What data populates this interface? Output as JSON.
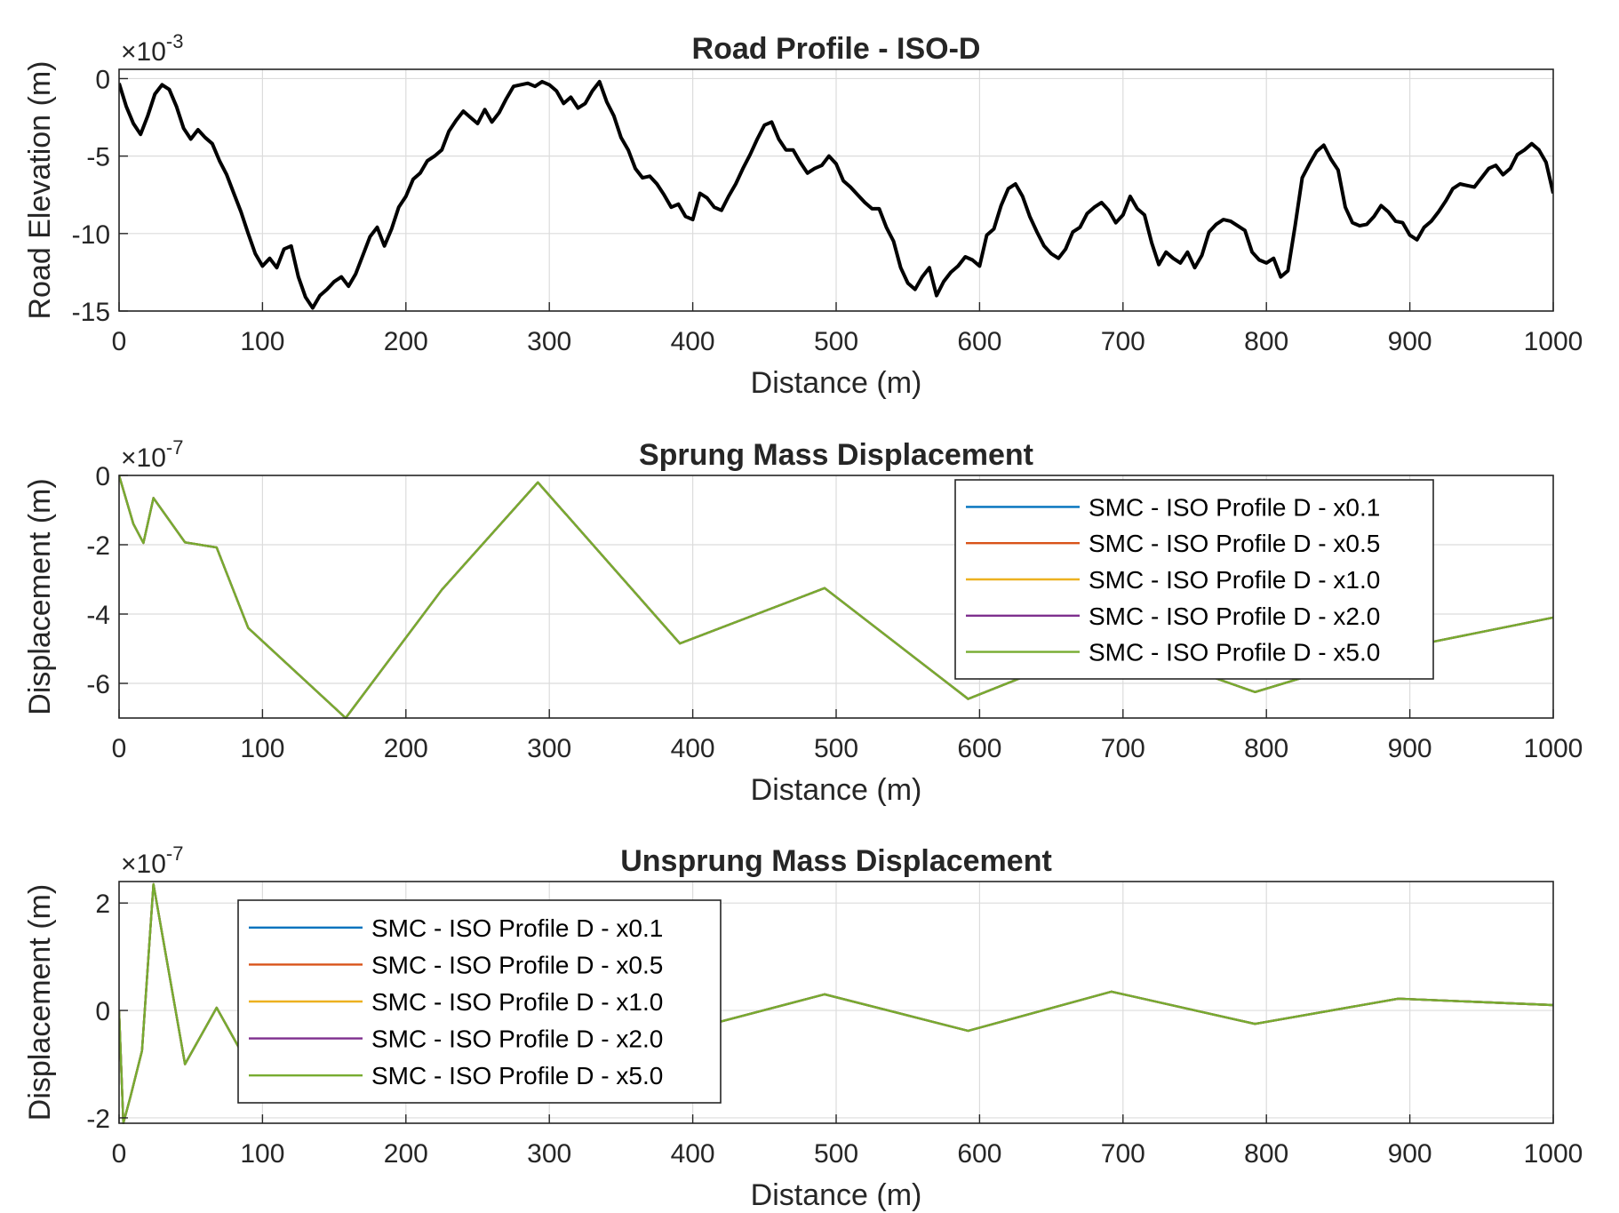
{
  "colors": {
    "series": [
      "#0072BD",
      "#D95319",
      "#EDB120",
      "#7E2F8E",
      "#77AC30"
    ],
    "road": "#000000",
    "grid": "#dcdcdc",
    "axes": "#262626"
  },
  "chart_data": [
    {
      "type": "line",
      "title": "Road Profile - ISO-D",
      "xlabel": "Distance (m)",
      "ylabel": "Road Elevation (m)",
      "y_multiplier": "×10",
      "y_exponent": "-3",
      "xlim": [
        0,
        1000
      ],
      "ylim": [
        -15,
        0.6
      ],
      "xticks": [
        0,
        100,
        200,
        300,
        400,
        500,
        600,
        700,
        800,
        900,
        1000
      ],
      "xtick_labels": [
        "0",
        "100",
        "200",
        "300",
        "400",
        "500",
        "600",
        "700",
        "800",
        "900",
        "1000"
      ],
      "yticks": [
        0,
        -5,
        -10,
        -15
      ],
      "ytick_labels": [
        "0",
        "-5",
        "-10",
        "-15"
      ],
      "grid": true,
      "legend": null,
      "series": [
        {
          "x": [
            0,
            5,
            10,
            15,
            20,
            25,
            30,
            35,
            40,
            45,
            50,
            55,
            60,
            65,
            70,
            75,
            80,
            85,
            90,
            95,
            100,
            105,
            110,
            115,
            120,
            125,
            130,
            135,
            140,
            145,
            150,
            155,
            160,
            165,
            170,
            175,
            180,
            185,
            190,
            195,
            200,
            205,
            210,
            215,
            220,
            225,
            230,
            235,
            240,
            245,
            250,
            255,
            260,
            265,
            270,
            275,
            280,
            285,
            290,
            295,
            300,
            305,
            310,
            315,
            320,
            325,
            330,
            335,
            340,
            345,
            350,
            355,
            360,
            365,
            370,
            375,
            380,
            385,
            390,
            395,
            400,
            405,
            410,
            415,
            420,
            425,
            430,
            435,
            440,
            445,
            450,
            455,
            460,
            465,
            470,
            475,
            480,
            485,
            490,
            495,
            500,
            505,
            510,
            515,
            520,
            525,
            530,
            535,
            540,
            545,
            550,
            555,
            560,
            565,
            570,
            575,
            580,
            585,
            590,
            595,
            600,
            605,
            610,
            615,
            620,
            625,
            630,
            635,
            640,
            645,
            650,
            655,
            660,
            665,
            670,
            675,
            680,
            685,
            690,
            695,
            700,
            705,
            710,
            715,
            720,
            725,
            730,
            735,
            740,
            745,
            750,
            755,
            760,
            765,
            770,
            775,
            780,
            785,
            790,
            795,
            800,
            805,
            810,
            815,
            820,
            825,
            830,
            835,
            840,
            845,
            850,
            855,
            860,
            865,
            870,
            875,
            880,
            885,
            890,
            895,
            900,
            905,
            910,
            915,
            920,
            925,
            930,
            935,
            940,
            945,
            950,
            955,
            960,
            965,
            970,
            975,
            980,
            985,
            990,
            995,
            1000
          ],
          "y": [
            -0.3,
            -1.8,
            -2.9,
            -3.6,
            -2.4,
            -1.0,
            -0.4,
            -0.7,
            -1.8,
            -3.2,
            -3.9,
            -3.3,
            -3.8,
            -4.2,
            -5.3,
            -6.2,
            -7.4,
            -8.6,
            -10.0,
            -11.3,
            -12.1,
            -11.6,
            -12.2,
            -11.0,
            -10.8,
            -12.8,
            -14.1,
            -14.8,
            -14.0,
            -13.6,
            -13.1,
            -12.8,
            -13.4,
            -12.6,
            -11.4,
            -10.2,
            -9.6,
            -10.8,
            -9.7,
            -8.3,
            -7.6,
            -6.5,
            -6.1,
            -5.3,
            -5.0,
            -4.6,
            -3.4,
            -2.7,
            -2.1,
            -2.5,
            -2.9,
            -2.0,
            -2.8,
            -2.2,
            -1.3,
            -0.5,
            -0.4,
            -0.3,
            -0.5,
            -0.2,
            -0.4,
            -0.8,
            -1.6,
            -1.2,
            -1.9,
            -1.6,
            -0.8,
            -0.2,
            -1.5,
            -2.4,
            -3.8,
            -4.6,
            -5.8,
            -6.4,
            -6.3,
            -6.8,
            -7.5,
            -8.3,
            -8.1,
            -8.9,
            -9.1,
            -7.4,
            -7.7,
            -8.3,
            -8.5,
            -7.6,
            -6.8,
            -5.8,
            -4.9,
            -3.9,
            -3.0,
            -2.8,
            -3.9,
            -4.6,
            -4.6,
            -5.4,
            -6.1,
            -5.8,
            -5.6,
            -5.0,
            -5.5,
            -6.6,
            -7.0,
            -7.5,
            -8.0,
            -8.4,
            -8.4,
            -9.6,
            -10.5,
            -12.2,
            -13.2,
            -13.6,
            -12.8,
            -12.2,
            -14.0,
            -13.1,
            -12.5,
            -12.1,
            -11.5,
            -11.7,
            -12.1,
            -10.1,
            -9.7,
            -8.2,
            -7.1,
            -6.8,
            -7.6,
            -8.9,
            -9.9,
            -10.8,
            -11.3,
            -11.6,
            -11.0,
            -9.9,
            -9.6,
            -8.7,
            -8.3,
            -8.0,
            -8.5,
            -9.3,
            -8.8,
            -7.6,
            -8.4,
            -8.8,
            -10.6,
            -12.0,
            -11.2,
            -11.6,
            -11.9,
            -11.2,
            -12.2,
            -11.4,
            -9.9,
            -9.4,
            -9.1,
            -9.2,
            -9.5,
            -9.8,
            -11.2,
            -11.7,
            -11.9,
            -11.6,
            -12.8,
            -12.4,
            -9.5,
            -6.4,
            -5.5,
            -4.7,
            -4.3,
            -5.2,
            -5.9,
            -8.3,
            -9.3,
            -9.5,
            -9.4,
            -8.9,
            -8.2,
            -8.6,
            -9.2,
            -9.3,
            -10.1,
            -10.4,
            -9.6,
            -9.2,
            -8.6,
            -7.9,
            -7.1,
            -6.8,
            -6.9,
            -7.0,
            -6.4,
            -5.8,
            -5.6,
            -6.2,
            -5.8,
            -4.9,
            -4.6,
            -4.2,
            -4.6,
            -5.4,
            -7.4
          ]
        }
      ]
    },
    {
      "type": "line",
      "title": "Sprung Mass Displacement",
      "xlabel": "Distance (m)",
      "ylabel": "Displacement (m)",
      "y_multiplier": "×10",
      "y_exponent": "-7",
      "xlim": [
        0,
        1000
      ],
      "ylim": [
        -7,
        0
      ],
      "xticks": [
        0,
        100,
        200,
        300,
        400,
        500,
        600,
        700,
        800,
        900,
        1000
      ],
      "xtick_labels": [
        "0",
        "100",
        "200",
        "300",
        "400",
        "500",
        "600",
        "700",
        "800",
        "900",
        "1000"
      ],
      "yticks": [
        0,
        -2,
        -4,
        -6
      ],
      "ytick_labels": [
        "0",
        "-2",
        "-4",
        "-6"
      ],
      "grid": true,
      "legend": "top-right",
      "series": [
        {
          "name": "SMC - ISO Profile D - x0.1",
          "x": [
            0,
            10,
            17,
            24,
            46,
            68,
            90,
            158,
            225,
            292,
            391,
            492,
            592,
            692,
            792,
            892,
            1000
          ],
          "y": [
            0,
            -1.4,
            -1.95,
            -0.65,
            -1.93,
            -2.08,
            -4.4,
            -7.0,
            -3.3,
            -0.2,
            -4.85,
            -3.25,
            -6.45,
            -4.8,
            -6.25,
            -5.0,
            -4.1
          ]
        },
        {
          "name": "SMC - ISO Profile D - x0.5",
          "x": [
            0,
            10,
            17,
            24,
            46,
            68,
            90,
            158,
            225,
            292,
            391,
            492,
            592,
            692,
            792,
            892,
            1000
          ],
          "y": [
            0,
            -1.4,
            -1.95,
            -0.65,
            -1.93,
            -2.08,
            -4.4,
            -7.0,
            -3.3,
            -0.2,
            -4.85,
            -3.25,
            -6.45,
            -4.8,
            -6.25,
            -5.0,
            -4.1
          ]
        },
        {
          "name": "SMC - ISO Profile D - x1.0",
          "x": [
            0,
            10,
            17,
            24,
            46,
            68,
            90,
            158,
            225,
            292,
            391,
            492,
            592,
            692,
            792,
            892,
            1000
          ],
          "y": [
            0,
            -1.4,
            -1.95,
            -0.65,
            -1.93,
            -2.08,
            -4.4,
            -7.0,
            -3.3,
            -0.2,
            -4.85,
            -3.25,
            -6.45,
            -4.8,
            -6.25,
            -5.0,
            -4.1
          ]
        },
        {
          "name": "SMC - ISO Profile D - x2.0",
          "x": [
            0,
            10,
            17,
            24,
            46,
            68,
            90,
            158,
            225,
            292,
            391,
            492,
            592,
            692,
            792,
            892,
            1000
          ],
          "y": [
            0,
            -1.4,
            -1.95,
            -0.65,
            -1.93,
            -2.08,
            -4.4,
            -7.0,
            -3.3,
            -0.2,
            -4.85,
            -3.25,
            -6.45,
            -4.8,
            -6.25,
            -5.0,
            -4.1
          ]
        },
        {
          "name": "SMC - ISO Profile D - x5.0",
          "x": [
            0,
            10,
            17,
            24,
            46,
            68,
            90,
            158,
            225,
            292,
            391,
            492,
            592,
            692,
            792,
            892,
            1000
          ],
          "y": [
            0,
            -1.4,
            -1.95,
            -0.65,
            -1.93,
            -2.08,
            -4.4,
            -7.0,
            -3.3,
            -0.2,
            -4.85,
            -3.25,
            -6.45,
            -4.8,
            -6.25,
            -5.0,
            -4.1
          ]
        }
      ]
    },
    {
      "type": "line",
      "title": "Unsprung Mass Displacement",
      "xlabel": "Distance (m)",
      "ylabel": "Displacement (m)",
      "y_multiplier": "×10",
      "y_exponent": "-7",
      "xlim": [
        0,
        1000
      ],
      "ylim": [
        -2.1,
        2.4
      ],
      "xticks": [
        0,
        100,
        200,
        300,
        400,
        500,
        600,
        700,
        800,
        900,
        1000
      ],
      "xtick_labels": [
        "0",
        "100",
        "200",
        "300",
        "400",
        "500",
        "600",
        "700",
        "800",
        "900",
        "1000"
      ],
      "yticks": [
        2,
        0,
        -2
      ],
      "ytick_labels": [
        "2",
        "0",
        "-2"
      ],
      "grid": true,
      "legend": "top-left",
      "series": [
        {
          "name": "SMC - ISO Profile D - x0.1",
          "x": [
            0,
            3,
            8,
            16,
            24,
            46,
            68,
            90,
            158,
            292,
            392,
            492,
            592,
            692,
            792,
            892,
            1000
          ],
          "y": [
            0,
            -2.1,
            -1.6,
            -0.75,
            2.35,
            -1.0,
            0.05,
            -1.0,
            -1.1,
            -1.2,
            -0.4,
            0.3,
            -0.38,
            0.35,
            -0.25,
            0.22,
            0.1
          ]
        },
        {
          "name": "SMC - ISO Profile D - x0.5",
          "x": [
            0,
            3,
            8,
            16,
            24,
            46,
            68,
            90,
            158,
            292,
            392,
            492,
            592,
            692,
            792,
            892,
            1000
          ],
          "y": [
            0,
            -2.1,
            -1.6,
            -0.75,
            2.35,
            -1.0,
            0.05,
            -1.0,
            -1.1,
            -1.2,
            -0.4,
            0.3,
            -0.38,
            0.35,
            -0.25,
            0.22,
            0.1
          ]
        },
        {
          "name": "SMC - ISO Profile D - x1.0",
          "x": [
            0,
            3,
            8,
            16,
            24,
            46,
            68,
            90,
            158,
            292,
            392,
            492,
            592,
            692,
            792,
            892,
            1000
          ],
          "y": [
            0,
            -2.1,
            -1.6,
            -0.75,
            2.35,
            -1.0,
            0.05,
            -1.0,
            -1.1,
            -1.2,
            -0.4,
            0.3,
            -0.38,
            0.35,
            -0.25,
            0.22,
            0.1
          ]
        },
        {
          "name": "SMC - ISO Profile D - x2.0",
          "x": [
            0,
            3,
            8,
            16,
            24,
            46,
            68,
            90,
            158,
            292,
            392,
            492,
            592,
            692,
            792,
            892,
            1000
          ],
          "y": [
            0,
            -2.1,
            -1.6,
            -0.75,
            2.35,
            -1.0,
            0.05,
            -1.0,
            -1.1,
            -1.2,
            -0.4,
            0.3,
            -0.38,
            0.35,
            -0.25,
            0.22,
            0.1
          ]
        },
        {
          "name": "SMC - ISO Profile D - x5.0",
          "x": [
            0,
            3,
            8,
            16,
            24,
            46,
            68,
            90,
            158,
            292,
            392,
            492,
            592,
            692,
            792,
            892,
            1000
          ],
          "y": [
            0,
            -2.1,
            -1.6,
            -0.75,
            2.35,
            -1.0,
            0.05,
            -1.0,
            -1.1,
            -1.2,
            -0.4,
            0.3,
            -0.38,
            0.35,
            -0.25,
            0.22,
            0.1
          ]
        }
      ]
    }
  ]
}
